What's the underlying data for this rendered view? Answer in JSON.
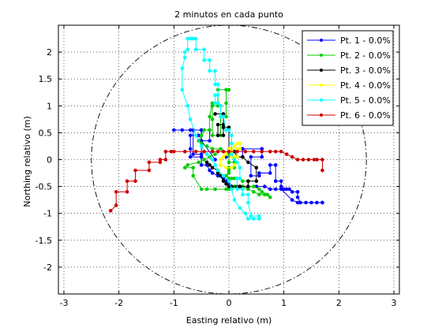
{
  "chart_data": {
    "type": "line",
    "title": "2 minutos en cada punto",
    "xlabel": "Easting relativo (m)",
    "ylabel": "Northing relativo (m)",
    "xlim": [
      -3.1,
      3.1
    ],
    "ylim": [
      -2.5,
      2.5
    ],
    "xticks": [
      -3,
      -2,
      -1,
      0,
      1,
      2,
      3
    ],
    "yticks": [
      2,
      1.5,
      1,
      0.5,
      0,
      -0.5,
      -1,
      -1.5,
      -2
    ],
    "grid": true,
    "grid_style": "dotted",
    "legend_position": "top-right",
    "circle": {
      "center": [
        0,
        0
      ],
      "radius": 2.5,
      "style": "dash-dot",
      "color": "#000000"
    },
    "series": [
      {
        "name": "Pt. 1 - 0.0%",
        "color": "#0000ff",
        "x": [
          -0.05,
          0.25,
          0.25,
          0.6,
          0.6,
          0.4,
          0.4,
          0.55,
          0.55,
          0.75,
          0.75,
          0.85,
          0.85,
          0.95,
          0.95,
          1.0,
          1.05,
          1.1,
          1.15,
          1.25,
          1.25,
          1.3,
          1.4,
          1.5,
          1.6,
          1.7,
          1.7,
          1.25,
          1.15,
          0.95,
          0.85,
          0.75,
          0.65,
          0.5,
          0.35,
          0.25,
          0.1,
          0.0,
          -0.05,
          -0.1,
          -0.2,
          -0.3,
          -0.35,
          -0.4,
          -0.5,
          -0.5,
          -0.5,
          -0.7,
          -0.7,
          -0.7,
          -0.55,
          -0.5,
          -0.5,
          -0.5,
          -0.35,
          -0.35,
          -0.5,
          -0.5,
          -0.65,
          -0.65,
          -0.85,
          -1.0,
          -0.7,
          -0.5,
          -0.5,
          -0.25
        ],
        "y": [
          0.05,
          0.05,
          0.2,
          0.2,
          0.05,
          0.05,
          -0.3,
          -0.3,
          -0.25,
          -0.25,
          -0.1,
          -0.1,
          -0.4,
          -0.4,
          -0.5,
          -0.55,
          -0.55,
          -0.55,
          -0.6,
          -0.6,
          -0.7,
          -0.8,
          -0.8,
          -0.8,
          -0.8,
          -0.8,
          -0.8,
          -0.8,
          -0.75,
          -0.55,
          -0.55,
          -0.55,
          -0.5,
          -0.5,
          -0.5,
          -0.5,
          -0.5,
          -0.45,
          -0.4,
          -0.35,
          -0.3,
          -0.25,
          -0.2,
          -0.1,
          -0.1,
          0.05,
          0.05,
          0.05,
          0.2,
          0.45,
          0.45,
          0.45,
          0.3,
          0.55,
          0.55,
          0.35,
          0.35,
          0.1,
          0.1,
          0.55,
          0.55,
          0.55,
          0.55,
          0.55,
          0.35,
          0.0
        ]
      },
      {
        "name": "Pt. 2 - 0.0%",
        "color": "#00cc00",
        "x": [
          -0.2,
          -0.3,
          -0.3,
          -0.3,
          -0.15,
          -0.15,
          -0.05,
          -0.05,
          -0.05,
          0.0,
          -0.2,
          -0.2,
          -0.3,
          -0.35,
          -0.35,
          -0.45,
          -0.5,
          -0.55,
          -0.5,
          -0.4,
          -0.3,
          -0.15,
          0.0,
          0.0,
          0.1,
          0.1,
          0.0,
          0.0,
          0.0,
          -0.05,
          0.0,
          0.05,
          0.1,
          0.15,
          0.2,
          0.25,
          0.35,
          0.35,
          0.45,
          0.55,
          0.6,
          0.7,
          0.75,
          0.65,
          0.55,
          0.45,
          0.35,
          0.25,
          0.2,
          0.1,
          0.05,
          0.0,
          -0.05,
          -0.25,
          -0.4,
          -0.5,
          -0.65,
          -0.65,
          -0.8,
          -0.75,
          -0.55,
          -0.45,
          -0.35,
          -0.25
        ],
        "y": [
          1.0,
          1.0,
          0.75,
          0.45,
          0.45,
          0.8,
          0.8,
          1.05,
          1.3,
          1.3,
          1.3,
          1.05,
          1.05,
          0.8,
          0.55,
          0.55,
          0.45,
          0.35,
          0.3,
          0.25,
          0.2,
          0.2,
          0.1,
          -0.05,
          -0.05,
          -0.15,
          -0.15,
          -0.2,
          -0.25,
          -0.3,
          -0.35,
          -0.35,
          -0.35,
          -0.35,
          -0.35,
          -0.4,
          -0.4,
          -0.5,
          -0.5,
          -0.55,
          -0.6,
          -0.65,
          -0.7,
          -0.65,
          -0.65,
          -0.6,
          -0.55,
          -0.5,
          -0.5,
          -0.5,
          -0.55,
          -0.55,
          -0.55,
          -0.55,
          -0.55,
          -0.55,
          -0.3,
          -0.15,
          -0.15,
          -0.1,
          -0.05,
          0.0,
          0.05,
          0.1
        ]
      },
      {
        "name": "Pt. 3 - 0.0%",
        "color": "#000000",
        "x": [
          -0.25,
          -0.1,
          -0.1,
          -0.2,
          -0.2,
          -0.1,
          -0.1,
          0.0,
          0.0,
          0.1,
          0.15,
          0.25,
          0.35,
          0.5,
          0.5,
          0.35,
          0.35,
          0.2,
          0.15,
          0.05,
          0.0,
          -0.05,
          -0.1,
          -0.15,
          -0.2,
          -0.2,
          -0.3,
          -0.35,
          -0.4
        ],
        "y": [
          0.85,
          0.85,
          0.65,
          0.65,
          0.45,
          0.45,
          0.6,
          0.6,
          0.2,
          0.15,
          0.05,
          0.05,
          -0.05,
          -0.15,
          -0.4,
          -0.4,
          -0.5,
          -0.5,
          -0.5,
          -0.5,
          -0.5,
          -0.45,
          -0.4,
          -0.3,
          -0.25,
          -0.2,
          -0.15,
          -0.1,
          -0.05
        ]
      },
      {
        "name": "Pt. 4 - 0.0%",
        "color": "#ffff00",
        "x": [
          0.05,
          0.05,
          0.1,
          0.15,
          0.15,
          0.2,
          0.2,
          0.15,
          0.1,
          0.05,
          0.0,
          -0.05,
          -0.1,
          -0.15,
          -0.15,
          -0.05,
          0.05,
          0.1,
          0.15
        ],
        "y": [
          0.15,
          0.05,
          0.05,
          0.05,
          0.2,
          0.2,
          0.3,
          0.3,
          0.25,
          0.2,
          0.2,
          0.1,
          0.05,
          0.0,
          -0.1,
          -0.15,
          -0.15,
          -0.1,
          -0.05
        ]
      },
      {
        "name": "Pt. 5 - 0.0%",
        "color": "#00ffff",
        "x": [
          -0.7,
          -0.6,
          -0.6,
          -0.45,
          -0.45,
          -0.35,
          -0.35,
          -0.25,
          -0.25,
          -0.2,
          -0.2,
          -0.25,
          -0.25,
          -0.2,
          -0.15,
          -0.15,
          -0.1,
          -0.05,
          0.0,
          0.05,
          0.05,
          0.05,
          0.1,
          0.15,
          0.2,
          0.2,
          0.15,
          0.15,
          0.25,
          0.25,
          0.35,
          0.35,
          0.4,
          0.55,
          0.55,
          0.55,
          0.45,
          0.35,
          0.3,
          0.2,
          0.1,
          0.05,
          0.0,
          -0.1,
          -0.2,
          -0.25,
          -0.3,
          -0.4,
          -0.5,
          -0.6,
          -0.7,
          -0.75,
          -0.85,
          -0.85,
          -0.8,
          -0.8,
          -0.75,
          -0.75,
          -0.7,
          -0.65,
          -0.65
        ],
        "y": [
          2.25,
          2.25,
          2.05,
          2.05,
          1.85,
          1.85,
          1.65,
          1.65,
          1.4,
          1.4,
          1.2,
          1.2,
          1.05,
          1.05,
          1.0,
          0.8,
          0.8,
          0.55,
          0.55,
          0.45,
          0.3,
          0.1,
          0.0,
          -0.05,
          -0.15,
          -0.35,
          -0.35,
          -0.55,
          -0.55,
          -0.65,
          -0.65,
          -0.8,
          -1.05,
          -1.05,
          -1.1,
          -1.1,
          -1.1,
          -1.1,
          -1.0,
          -0.9,
          -0.75,
          -0.55,
          -0.4,
          -0.3,
          -0.2,
          -0.1,
          0.0,
          0.1,
          0.25,
          0.45,
          0.75,
          1.0,
          1.3,
          1.7,
          1.9,
          2.0,
          2.05,
          2.25,
          2.25,
          2.25,
          2.25
        ]
      },
      {
        "name": "Pt. 6 - 0.0%",
        "color": "#cc0000",
        "x": [
          -2.15,
          -2.05,
          -2.05,
          -1.85,
          -1.85,
          -1.7,
          -1.7,
          -1.45,
          -1.45,
          -1.25,
          -1.25,
          -1.15,
          -1.15,
          -1.05,
          -1.0,
          -0.8,
          -0.6,
          -0.45,
          -0.3,
          -0.2,
          -0.1,
          0.0,
          0.15,
          0.3,
          0.45,
          0.6,
          0.75,
          0.85,
          0.95,
          1.05,
          1.15,
          1.25,
          1.35,
          1.45,
          1.55,
          1.6,
          1.7,
          1.7
        ],
        "y": [
          -0.95,
          -0.85,
          -0.6,
          -0.6,
          -0.4,
          -0.4,
          -0.2,
          -0.2,
          -0.05,
          -0.05,
          0.0,
          0.0,
          0.15,
          0.15,
          0.15,
          0.15,
          0.15,
          0.15,
          0.15,
          0.15,
          0.15,
          0.15,
          0.15,
          0.15,
          0.15,
          0.15,
          0.15,
          0.15,
          0.15,
          0.1,
          0.05,
          0.0,
          0.0,
          0.0,
          0.0,
          0.0,
          0.0,
          -0.2
        ]
      }
    ]
  }
}
